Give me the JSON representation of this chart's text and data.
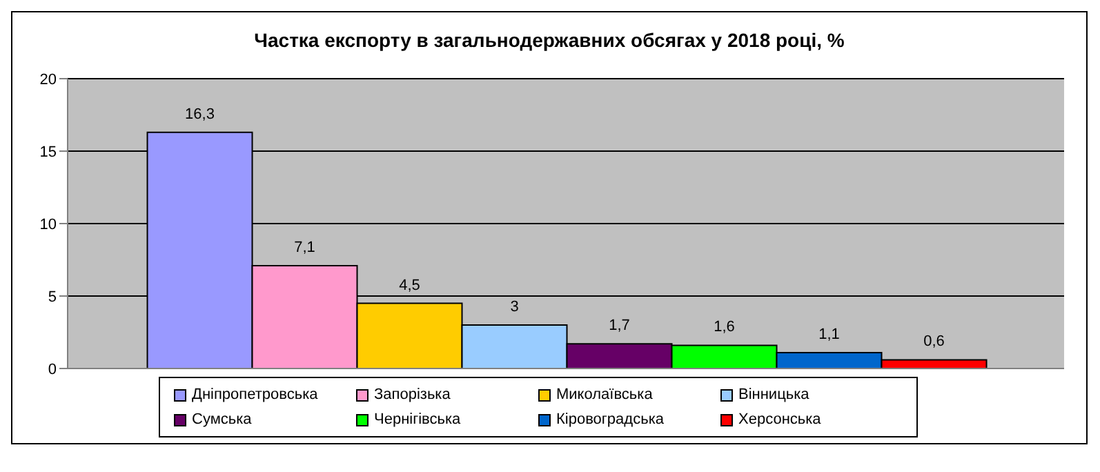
{
  "chart_data": {
    "type": "bar",
    "title": "Частка експорту в загальнодержавних обсягах у 2018 році, %",
    "categories": [
      null
    ],
    "series": [
      {
        "name": "Дніпропетровська",
        "color": "#9999ff",
        "values": [
          16.3
        ],
        "value_labels": [
          "16,3"
        ]
      },
      {
        "name": "Запорізька",
        "color": "#ff99cc",
        "values": [
          7.1
        ],
        "value_labels": [
          "7,1"
        ]
      },
      {
        "name": "Миколаївська",
        "color": "#ffcc00",
        "values": [
          4.5
        ],
        "value_labels": [
          "4,5"
        ]
      },
      {
        "name": "Вінницька",
        "color": "#99ccff",
        "values": [
          3
        ],
        "value_labels": [
          "3"
        ]
      },
      {
        "name": "Сумська",
        "color": "#660066",
        "values": [
          1.7
        ],
        "value_labels": [
          "1,7"
        ]
      },
      {
        "name": "Чернігівська",
        "color": "#00ff00",
        "values": [
          1.6
        ],
        "value_labels": [
          "1,6"
        ]
      },
      {
        "name": "Кіровоградська",
        "color": "#0066cc",
        "values": [
          1.1
        ],
        "value_labels": [
          "1,1"
        ]
      },
      {
        "name": "Херсонська",
        "color": "#ff0000",
        "values": [
          0.6
        ],
        "value_labels": [
          "0,6"
        ]
      }
    ],
    "ylim": [
      0,
      20
    ],
    "yticks": [
      0,
      5,
      10,
      15,
      20
    ],
    "grid": "y",
    "legend": "bottom",
    "tick_labels": "y"
  }
}
